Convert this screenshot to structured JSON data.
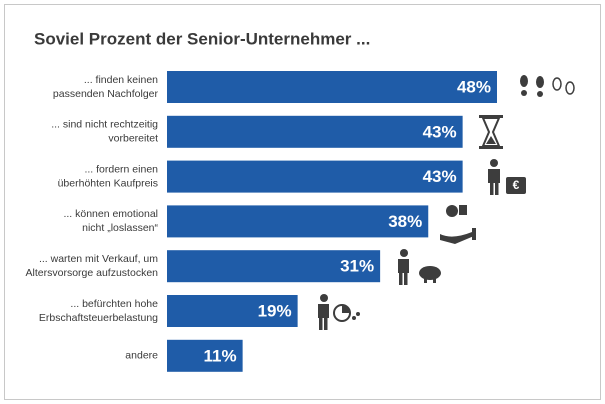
{
  "chart_data": {
    "type": "bar",
    "orientation": "horizontal",
    "title": "Soviel Prozent der Senior-Unternehmer ...",
    "categories": [
      [
        "... finden keinen",
        "passenden Nachfolger"
      ],
      [
        "... sind nicht rechtzeitig",
        "vorbereitet"
      ],
      [
        "... fordern einen",
        "überhöhten Kaufpreis"
      ],
      [
        "... können emotional",
        "nicht „loslassen“"
      ],
      [
        "... warten mit Verkauf, um",
        "Altersvorsorge aufzustocken"
      ],
      [
        "... befürchten hohe",
        "Erbschaftsteuerbelastung"
      ],
      [
        "andere"
      ]
    ],
    "values": [
      48,
      43,
      43,
      38,
      31,
      19,
      11
    ],
    "value_labels": [
      "48%",
      "43%",
      "43%",
      "38%",
      "31%",
      "19%",
      "11%"
    ],
    "color": "#1f5ca8"
  }
}
